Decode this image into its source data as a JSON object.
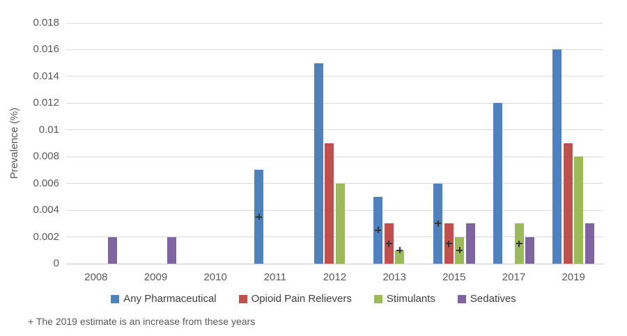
{
  "chart_data": {
    "type": "bar",
    "title": "",
    "xlabel": "",
    "ylabel": "Prevalence (%)",
    "ylim": [
      0,
      0.018
    ],
    "y_ticks": [
      "0.018",
      "0.016",
      "0.014",
      "0.012",
      "0.01",
      "0.008",
      "0.006",
      "0.004",
      "0.002",
      "0"
    ],
    "grid": true,
    "legend_position": "bottom",
    "categories": [
      "2008",
      "2009",
      "2010",
      "2011",
      "2012",
      "2013",
      "2015",
      "2017",
      "2019"
    ],
    "series": [
      {
        "name": "Any Pharmaceutical",
        "color": "#4F81BD",
        "values": [
          null,
          null,
          null,
          0.007,
          0.015,
          0.005,
          0.006,
          0.012,
          0.016
        ]
      },
      {
        "name": "Opioid Pain Relievers",
        "color": "#C0504D",
        "values": [
          null,
          null,
          null,
          null,
          0.009,
          0.003,
          0.003,
          null,
          0.009
        ]
      },
      {
        "name": "Stimulants",
        "color": "#9BBB59",
        "values": [
          null,
          null,
          null,
          null,
          0.006,
          0.001,
          0.002,
          0.003,
          0.008
        ]
      },
      {
        "name": "Sedatives",
        "color": "#8064A2",
        "values": [
          0.002,
          0.002,
          null,
          null,
          null,
          null,
          0.003,
          0.002,
          0.003
        ]
      }
    ],
    "markers": {
      "symbol": "+",
      "color": "#333333",
      "points": [
        {
          "category": "2011",
          "series": "Any Pharmaceutical",
          "value": 0.0035
        },
        {
          "category": "2013",
          "series": "Any Pharmaceutical",
          "value": 0.0025
        },
        {
          "category": "2013",
          "series": "Opioid Pain Relievers",
          "value": 0.0015
        },
        {
          "category": "2013",
          "series": "Stimulants",
          "value": 0.001
        },
        {
          "category": "2015",
          "series": "Any Pharmaceutical",
          "value": 0.003
        },
        {
          "category": "2015",
          "series": "Opioid Pain Relievers",
          "value": 0.0015
        },
        {
          "category": "2015",
          "series": "Stimulants",
          "value": 0.001
        },
        {
          "category": "2017",
          "series": "Stimulants",
          "value": 0.0015
        }
      ]
    },
    "footnote": "+ The 2019 estimate is an increase from these years",
    "style": {
      "gridline_color": "#D9D9D9",
      "axis_line_color": "#C9C9C9",
      "tick_text_color": "#595959",
      "legend_text_color": "#404040"
    }
  }
}
